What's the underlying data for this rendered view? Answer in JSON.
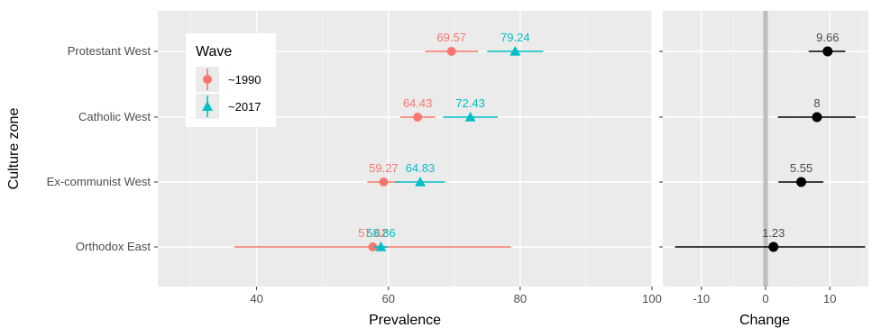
{
  "chart_data": [
    {
      "type": "dot-range",
      "xlabel": "Prevalence",
      "ylabel": "Culture zone",
      "xlim": [
        25,
        100
      ],
      "xticks": [
        "40",
        "60",
        "80",
        "100"
      ],
      "categories": [
        "Protestant West",
        "Catholic West",
        "Ex-communist West",
        "Orthodox East"
      ],
      "legend": {
        "title": "Wave",
        "position": "top-left"
      },
      "series": [
        {
          "name": "~1990",
          "color": "#F8766D",
          "marker": "circle",
          "values": [
            69.57,
            64.43,
            59.27,
            57.62
          ],
          "labels": [
            "69.57",
            "64.43",
            "59.27",
            "57.62"
          ],
          "ci_low": [
            65.6,
            61.8,
            56.8,
            36.6
          ],
          "ci_high": [
            73.6,
            67.1,
            61.6,
            78.6
          ]
        },
        {
          "name": "~2017",
          "color": "#00BFC4",
          "marker": "triangle",
          "values": [
            79.24,
            72.43,
            64.83,
            58.86
          ],
          "labels": [
            "79.24",
            "72.43",
            "64.83",
            "58.86"
          ],
          "ci_low": [
            75.0,
            68.3,
            61.0,
            57.8
          ],
          "ci_high": [
            83.5,
            76.6,
            68.6,
            59.9
          ]
        }
      ],
      "grid": true
    },
    {
      "type": "dot-range",
      "xlabel": "Change",
      "xlim": [
        -16,
        16
      ],
      "xticks": [
        "-10",
        "0",
        "10"
      ],
      "reference_line": 0,
      "categories": [
        "Protestant West",
        "Catholic West",
        "Ex-communist West",
        "Orthodox East"
      ],
      "series": [
        {
          "color": "#000000",
          "values": [
            9.66,
            8,
            5.55,
            1.23
          ],
          "labels": [
            "9.66",
            "8",
            "5.55",
            "1.23"
          ],
          "ci_low": [
            6.7,
            1.9,
            2.0,
            -14.1
          ],
          "ci_high": [
            12.4,
            14.0,
            9.0,
            15.5
          ]
        }
      ],
      "grid": true
    }
  ]
}
